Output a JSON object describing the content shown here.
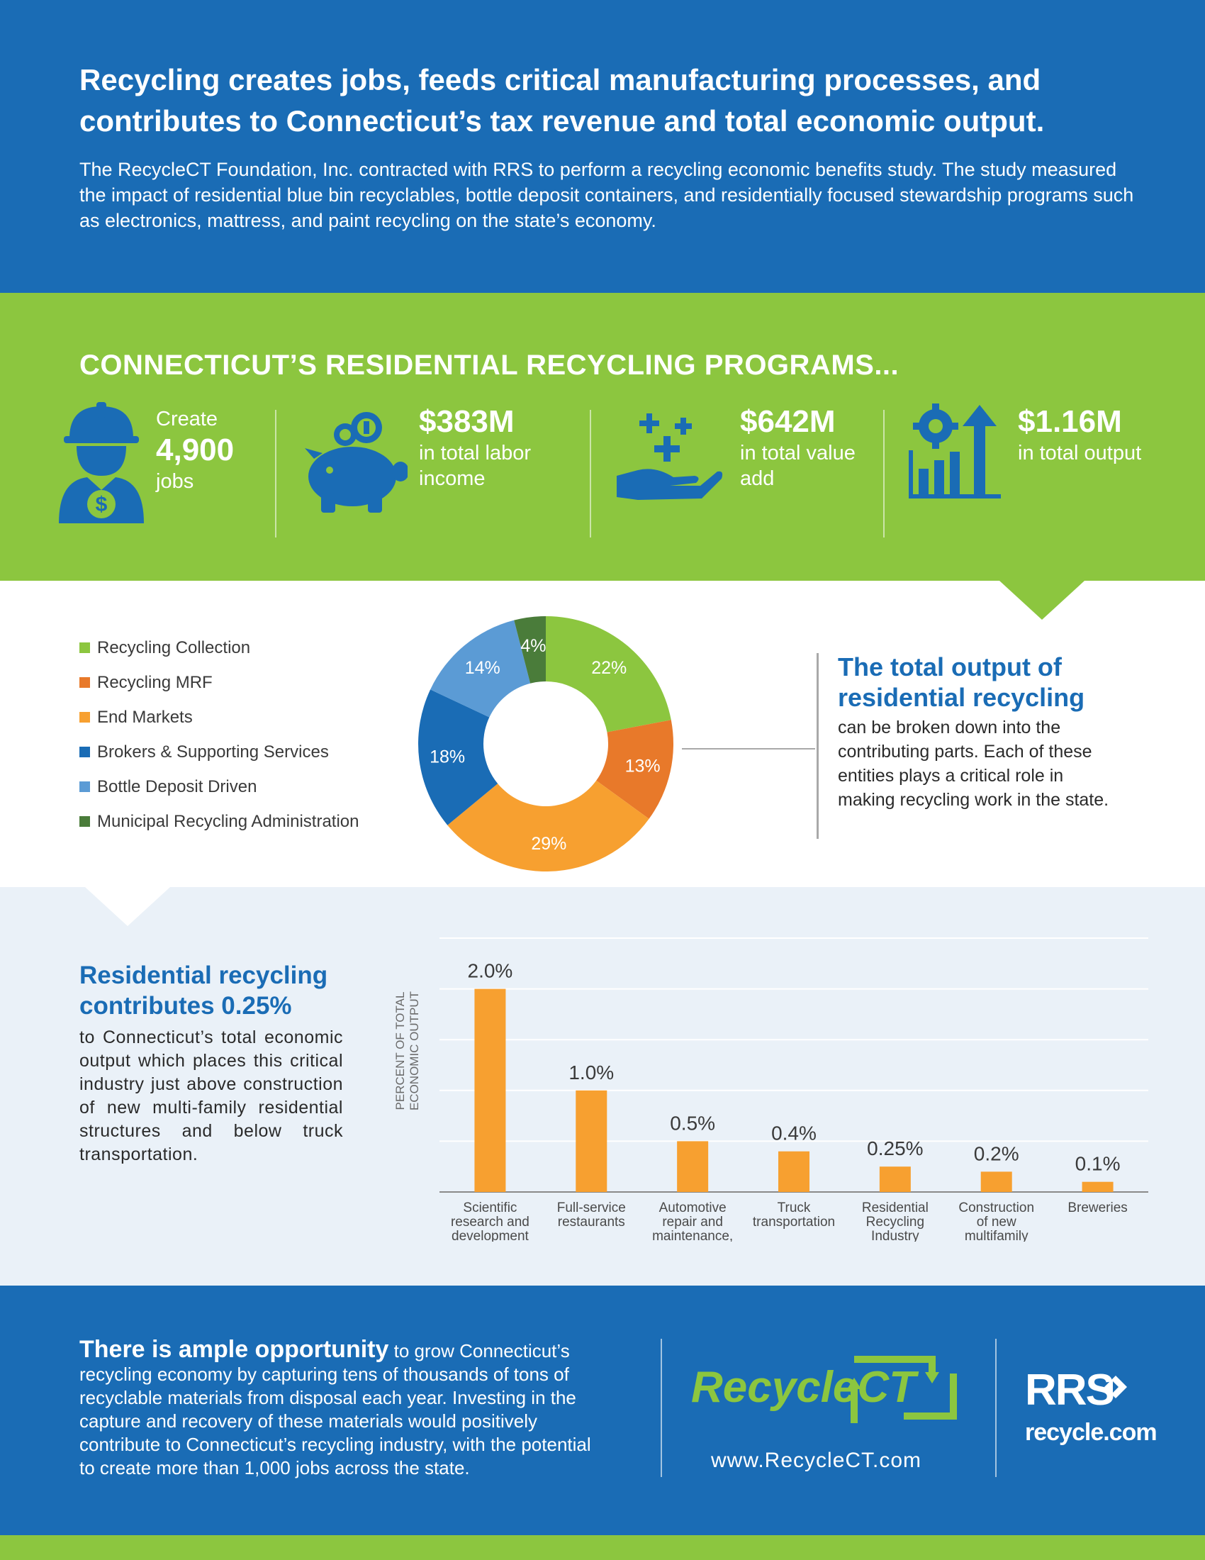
{
  "header": {
    "title": "Recycling creates jobs, feeds critical manufacturing processes, and contributes to Connecticut’s tax revenue and total economic output.",
    "intro": "The RecycleCT Foundation, Inc. contracted with RRS to perform a recycling economic benefits study.  The study measured the impact of residential blue bin recyclables, bottle deposit containers, and residentially focused stewardship programs such as electronics, mattress, and paint recycling on the state’s economy."
  },
  "programs": {
    "heading": "CONNECTICUT’S RESIDENTIAL RECYCLING PROGRAMS...",
    "stats": [
      {
        "pre": "Create",
        "value": "4,900",
        "post": "jobs",
        "icon": "worker-icon"
      },
      {
        "pre": "",
        "value": "$383M",
        "post": "in total labor income",
        "icon": "piggy-bank-icon"
      },
      {
        "pre": "",
        "value": "$642M",
        "post": "in total value add",
        "icon": "hand-plus-icon"
      },
      {
        "pre": "",
        "value": "$1.16M",
        "post": "in total output",
        "icon": "growth-chart-icon"
      }
    ]
  },
  "donut": {
    "heading": "The total output of residential recycling",
    "body": "can be broken down into the contributing parts. Each of these entities plays a critical role in making recycling work in the state.",
    "chart_data": {
      "type": "pie",
      "categories": [
        "Recycling Collection",
        "Recycling MRF",
        "End Markets",
        "Brokers & Supporting Services",
        "Bottle Deposit Driven",
        "Municipal Recycling Administration"
      ],
      "values": [
        22,
        13,
        29,
        18,
        14,
        4
      ],
      "labels": [
        "22%",
        "13%",
        "29%",
        "18%",
        "14%",
        "4%"
      ],
      "colors": [
        "#8cc63f",
        "#e8792a",
        "#f7a030",
        "#1a6cb5",
        "#5b9bd5",
        "#4a7c3a"
      ],
      "legend": "left"
    }
  },
  "bars": {
    "heading": "Residential recycling contributes 0.25%",
    "body": "to Connecticut’s total economic output which places this critical industry just above construction of new multi-family residential structures and below truck transportation.",
    "chart_data": {
      "type": "bar",
      "ylabel": "PERCENT OF TOTAL ECONOMIC OUTPUT",
      "categories": [
        "Scientific research and development services",
        "Full-service restaurants",
        "Automotive repair and maintenance, except car washes",
        "Truck transportation",
        "Residential Recycling Industry",
        "Construction of new multifamily residential structures",
        "Breweries"
      ],
      "values": [
        2.0,
        1.0,
        0.5,
        0.4,
        0.25,
        0.2,
        0.1
      ],
      "labels": [
        "2.0%",
        "1.0%",
        "0.5%",
        "0.4%",
        "0.25%",
        "0.2%",
        "0.1%"
      ],
      "ylim": [
        0,
        2.5
      ],
      "grid": true,
      "color": "#f7a030"
    }
  },
  "footer": {
    "lead": "There is ample opportunity",
    "text": " to grow Connecticut’s recycling economy by capturing tens of thousands of tons of recyclable materials from disposal each year. Investing in the capture and recovery of these materials would positively contribute to Connecticut’s recycling industry, with the potential to create more than 1,000 jobs across the state.",
    "rct_logo_text": "RecycleCT",
    "rct_url": "www.RecycleCT.com",
    "rrs_logo_text": "RRS",
    "rrs_sub": "recycle.com"
  }
}
